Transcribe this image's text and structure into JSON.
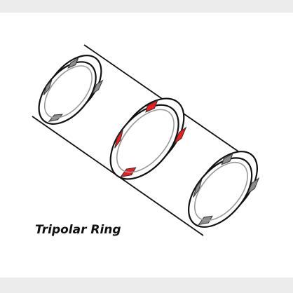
{
  "figure": {
    "caption": "Tripolar Ring"
  },
  "colors": {
    "background": "#ececec",
    "panel": "#ffffff",
    "outline": "#111111",
    "inner_rim": "#999999",
    "gray_segment": "#8c8c8c",
    "red_segment": "#ee1c1c"
  },
  "parts": [
    "tube",
    "left-ring",
    "center-ring",
    "right-ring"
  ]
}
